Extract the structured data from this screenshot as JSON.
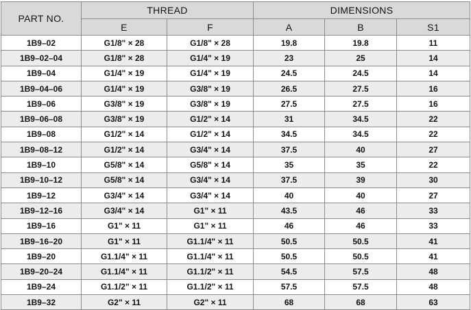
{
  "headers": {
    "part_no": "PART NO.",
    "thread": "THREAD",
    "dimensions": "DIMENSIONS",
    "e": "E",
    "f": "F",
    "a": "A",
    "b": "B",
    "s1": "S1"
  },
  "rows": [
    {
      "part": "1B9–02",
      "e": "G1/8\" × 28",
      "f": "G1/8\" × 28",
      "a": "19.8",
      "b": "19.8",
      "s1": "11"
    },
    {
      "part": "1B9–02–04",
      "e": "G1/8\" × 28",
      "f": "G1/4\" × 19",
      "a": "23",
      "b": "25",
      "s1": "14"
    },
    {
      "part": "1B9–04",
      "e": "G1/4\" × 19",
      "f": "G1/4\" × 19",
      "a": "24.5",
      "b": "24.5",
      "s1": "14"
    },
    {
      "part": "1B9–04–06",
      "e": "G1/4\" × 19",
      "f": "G3/8\" × 19",
      "a": "26.5",
      "b": "27.5",
      "s1": "16"
    },
    {
      "part": "1B9–06",
      "e": "G3/8\" × 19",
      "f": "G3/8\" × 19",
      "a": "27.5",
      "b": "27.5",
      "s1": "16"
    },
    {
      "part": "1B9–06–08",
      "e": "G3/8\" × 19",
      "f": "G1/2\" × 14",
      "a": "31",
      "b": "34.5",
      "s1": "22"
    },
    {
      "part": "1B9–08",
      "e": "G1/2\" × 14",
      "f": "G1/2\" × 14",
      "a": "34.5",
      "b": "34.5",
      "s1": "22"
    },
    {
      "part": "1B9–08–12",
      "e": "G1/2\" × 14",
      "f": "G3/4\" × 14",
      "a": "37.5",
      "b": "40",
      "s1": "27"
    },
    {
      "part": "1B9–10",
      "e": "G5/8\" × 14",
      "f": "G5/8\" × 14",
      "a": "35",
      "b": "35",
      "s1": "22"
    },
    {
      "part": "1B9–10–12",
      "e": "G5/8\" × 14",
      "f": "G3/4\" × 14",
      "a": "37.5",
      "b": "39",
      "s1": "30"
    },
    {
      "part": "1B9–12",
      "e": "G3/4\" × 14",
      "f": "G3/4\" × 14",
      "a": "40",
      "b": "40",
      "s1": "27"
    },
    {
      "part": "1B9–12–16",
      "e": "G3/4\" × 14",
      "f": "G1\" × 11",
      "a": "43.5",
      "b": "46",
      "s1": "33"
    },
    {
      "part": "1B9–16",
      "e": "G1\" × 11",
      "f": "G1\" × 11",
      "a": "46",
      "b": "46",
      "s1": "33"
    },
    {
      "part": "1B9–16–20",
      "e": "G1\" × 11",
      "f": "G1.1/4\" × 11",
      "a": "50.5",
      "b": "50.5",
      "s1": "41"
    },
    {
      "part": "1B9–20",
      "e": "G1.1/4\" × 11",
      "f": "G1.1/4\" × 11",
      "a": "50.5",
      "b": "50.5",
      "s1": "41"
    },
    {
      "part": "1B9–20–24",
      "e": "G1.1/4\" × 11",
      "f": "G1.1/2\" × 11",
      "a": "54.5",
      "b": "57.5",
      "s1": "48"
    },
    {
      "part": "1B9–24",
      "e": "G1.1/2\" × 11",
      "f": "G1.1/2\" × 11",
      "a": "57.5",
      "b": "57.5",
      "s1": "48"
    },
    {
      "part": "1B9–32",
      "e": "G2\" × 11",
      "f": "G2\" × 11",
      "a": "68",
      "b": "68",
      "s1": "63"
    }
  ]
}
